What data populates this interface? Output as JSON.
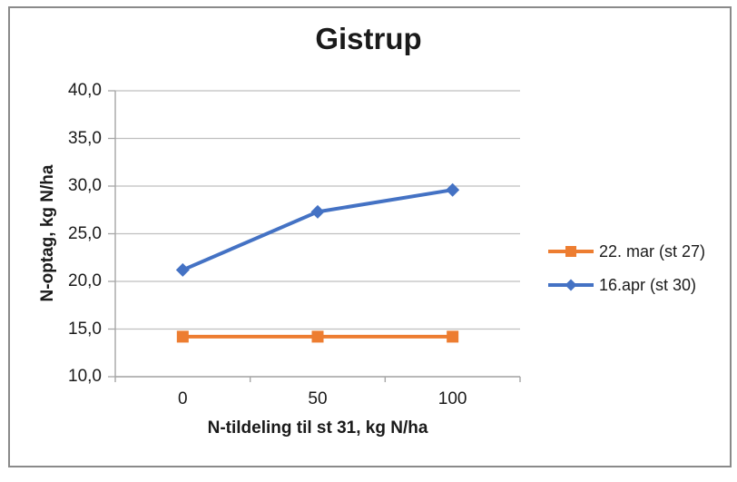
{
  "window": {
    "background_color": "#ffffff",
    "border_color": "#8a8a8a"
  },
  "chart_data": {
    "type": "line",
    "title": "Gistrup",
    "xlabel": "N-tildeling til st 31, kg N/ha",
    "ylabel": "N-optag, kg N/ha",
    "x_tick_labels": [
      "0",
      "50",
      "100"
    ],
    "y_tick_labels": [
      "10,0",
      "15,0",
      "20,0",
      "25,0",
      "30,0",
      "35,0",
      "40,0"
    ],
    "ylim": [
      10,
      40
    ],
    "y_tick_step": 5,
    "grid": "horizontal-only",
    "legend_position": "right",
    "decimal_separator": ",",
    "series": [
      {
        "name": "22. mar (st 27)",
        "marker": "square",
        "color": "#ED7D31",
        "x": [
          0,
          50,
          100
        ],
        "values": [
          14.2,
          14.2,
          14.2
        ]
      },
      {
        "name": "16.apr (st 30)",
        "marker": "diamond",
        "color": "#4472C4",
        "x": [
          0,
          50,
          100
        ],
        "values": [
          21.2,
          27.3,
          29.6
        ]
      }
    ],
    "axis_color": "#a6a6a6",
    "gridline_color": "#bfbfbf",
    "text_color": "#1a1a1a"
  }
}
